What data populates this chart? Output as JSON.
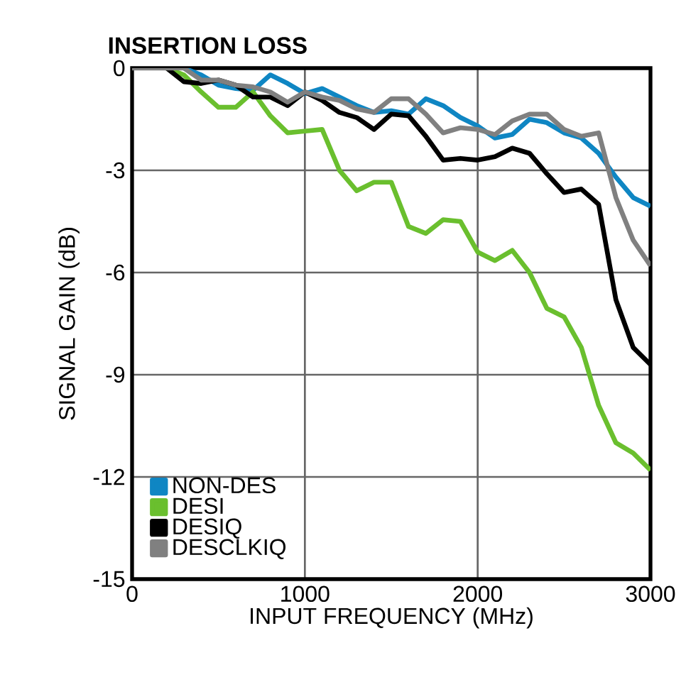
{
  "chart_data": {
    "type": "line",
    "title": "INSERTION LOSS",
    "xlabel": "INPUT FREQUENCY (MHz)",
    "ylabel": "SIGNAL GAIN (dB)",
    "x": [
      0,
      100,
      200,
      300,
      400,
      500,
      600,
      700,
      800,
      900,
      1000,
      1100,
      1200,
      1300,
      1400,
      1500,
      1600,
      1700,
      1800,
      1900,
      2000,
      2100,
      2200,
      2300,
      2400,
      2500,
      2600,
      2700,
      2800,
      2900,
      3000
    ],
    "xlim": [
      0,
      3000
    ],
    "xticks": [
      0,
      1000,
      2000,
      3000
    ],
    "ylim": [
      -15,
      0
    ],
    "yticks": [
      -15,
      -12,
      -9,
      -6,
      -3,
      0
    ],
    "grid": true,
    "legend": "bottom left",
    "series": [
      {
        "name": "NON-DES",
        "color": "#0f86c3",
        "values": [
          null,
          null,
          null,
          0,
          -0.2,
          -0.5,
          -0.6,
          -0.65,
          -0.2,
          -0.45,
          -0.75,
          -0.6,
          -0.85,
          -1.1,
          -1.3,
          -1.25,
          -1.35,
          -0.9,
          -1.1,
          -1.45,
          -1.7,
          -2.05,
          -1.95,
          -1.5,
          -1.6,
          -1.9,
          -2.05,
          -2.5,
          -3.2,
          -3.8,
          -4.05
        ]
      },
      {
        "name": "DESI",
        "color": "#6abf2e",
        "values": [
          null,
          null,
          0,
          -0.2,
          -0.7,
          -1.15,
          -1.15,
          -0.7,
          -1.4,
          -1.9,
          -1.85,
          -1.8,
          -3.0,
          -3.6,
          -3.35,
          -3.35,
          -4.65,
          -4.85,
          -4.45,
          -4.5,
          -5.4,
          -5.65,
          -5.35,
          -6.0,
          -7.05,
          -7.3,
          -8.2,
          -9.9,
          -11.0,
          -11.3,
          -11.8
        ]
      },
      {
        "name": "DESIQ",
        "color": "#000000",
        "values": [
          null,
          null,
          0,
          -0.4,
          -0.45,
          -0.35,
          -0.5,
          -0.85,
          -0.85,
          -1.1,
          -0.7,
          -0.95,
          -1.3,
          -1.45,
          -1.8,
          -1.35,
          -1.4,
          -2.0,
          -2.7,
          -2.65,
          -2.7,
          -2.6,
          -2.35,
          -2.5,
          -3.1,
          -3.65,
          -3.55,
          -4.0,
          -6.8,
          -8.2,
          -8.7
        ]
      },
      {
        "name": "DESCLKIQ",
        "color": "#808080",
        "values": [
          0,
          0,
          0,
          0,
          -0.35,
          -0.35,
          -0.5,
          -0.55,
          -0.7,
          -1.0,
          -0.7,
          -0.85,
          -0.95,
          -1.2,
          -1.3,
          -0.9,
          -0.9,
          -1.35,
          -1.9,
          -1.75,
          -1.8,
          -1.95,
          -1.55,
          -1.35,
          -1.35,
          -1.8,
          -2.0,
          -1.9,
          -3.8,
          -5.05,
          -5.8
        ]
      }
    ]
  }
}
